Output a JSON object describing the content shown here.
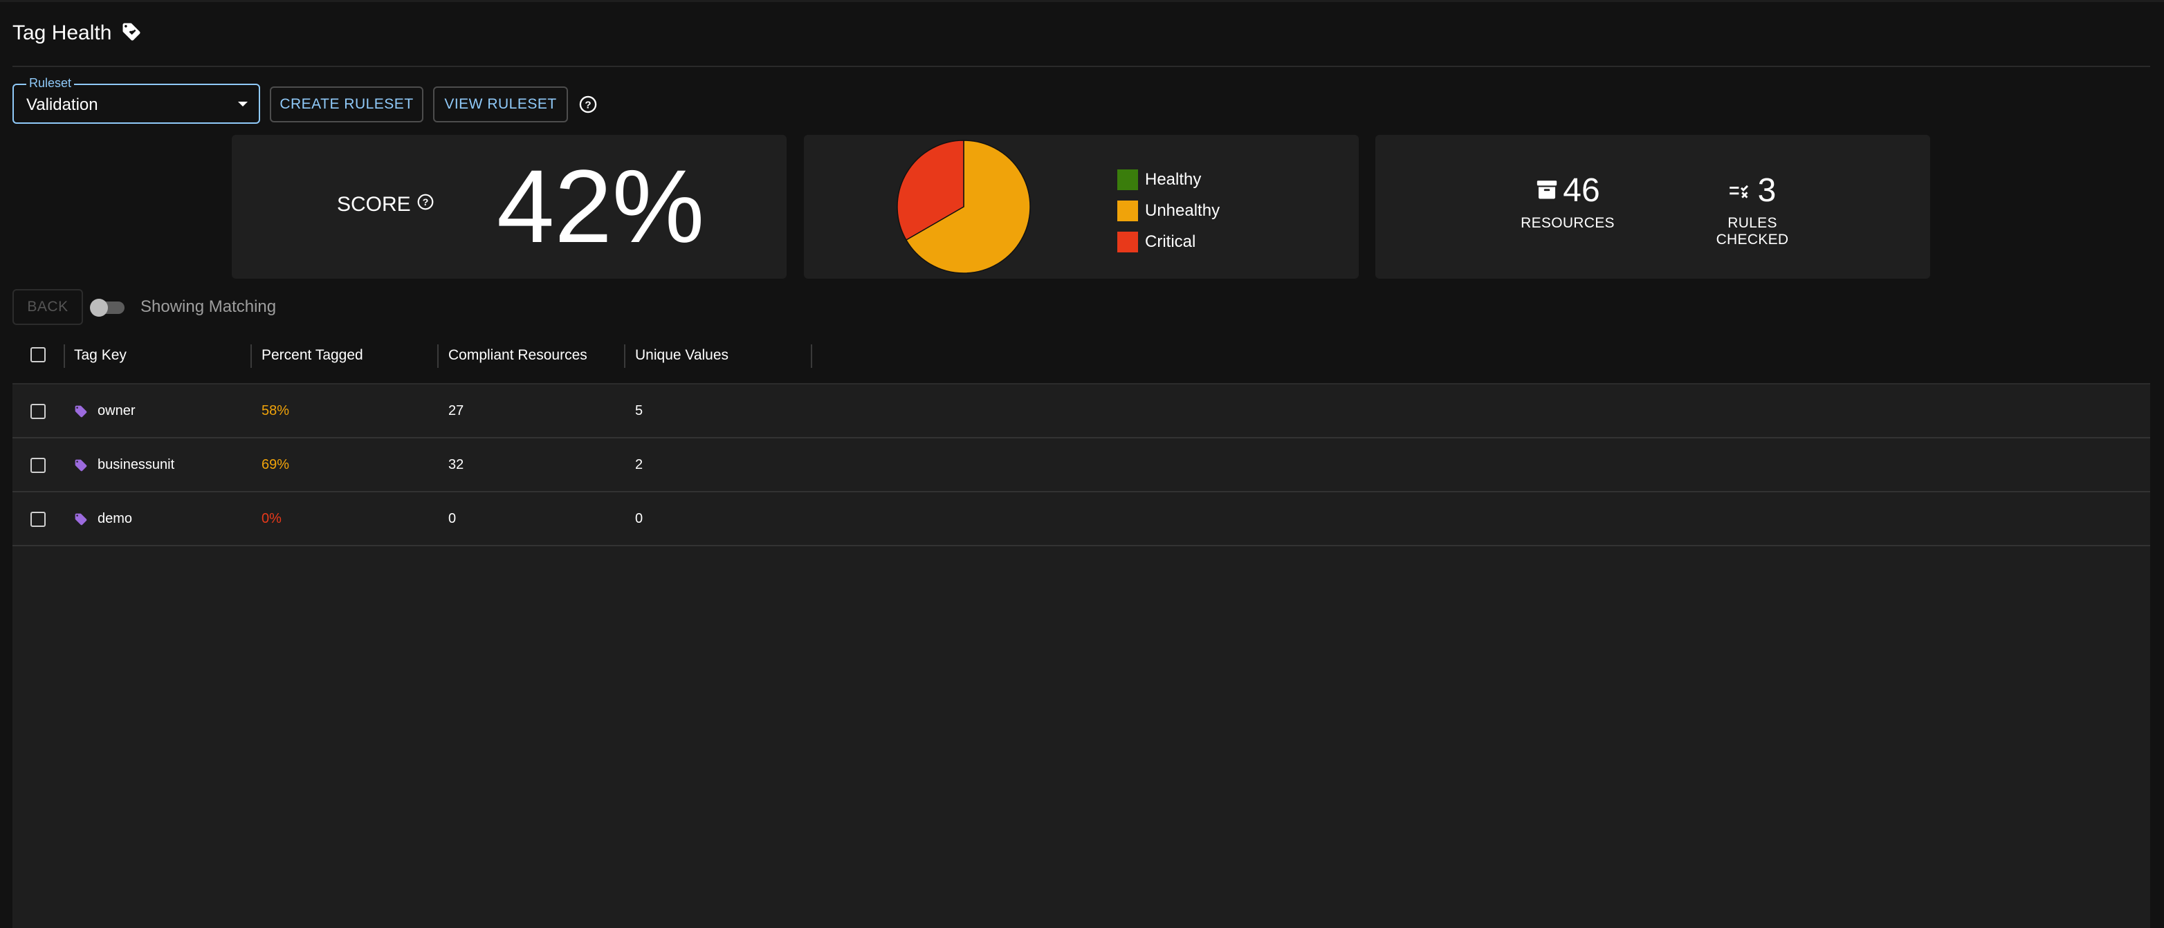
{
  "header": {
    "title": "Tag Health"
  },
  "ruleset": {
    "label": "Ruleset",
    "value": "Validation"
  },
  "buttons": {
    "create": "CREATE RULESET",
    "view": "VIEW RULESET",
    "back": "BACK"
  },
  "score": {
    "label": "SCORE",
    "value": "42%"
  },
  "pie": {
    "legend": [
      {
        "label": "Healthy",
        "color": "#3a7d0c"
      },
      {
        "label": "Unhealthy",
        "color": "#f0a30a"
      },
      {
        "label": "Critical",
        "color": "#e8391a"
      }
    ]
  },
  "chart_data": {
    "type": "pie",
    "labels": [
      "Healthy",
      "Unhealthy",
      "Critical"
    ],
    "values": [
      0,
      2,
      1
    ],
    "colors": [
      "#3a7d0c",
      "#f0a30a",
      "#e8391a"
    ]
  },
  "stats": {
    "resources": {
      "value": "46",
      "label": "RESOURCES",
      "icon": "archive-icon"
    },
    "rules": {
      "value": "3",
      "label": "RULES CHECKED",
      "icon": "rule-icon"
    }
  },
  "toggle": {
    "label": "Showing Matching",
    "checked": false
  },
  "table": {
    "columns": [
      "Tag Key",
      "Percent Tagged",
      "Compliant Resources",
      "Unique Values"
    ],
    "rows": [
      {
        "key": "owner",
        "percent": "58%",
        "compliant": "27",
        "unique": "5"
      },
      {
        "key": "businessunit",
        "percent": "69%",
        "compliant": "32",
        "unique": "2"
      },
      {
        "key": "demo",
        "percent": "0%",
        "compliant": "0",
        "unique": "0"
      }
    ]
  }
}
